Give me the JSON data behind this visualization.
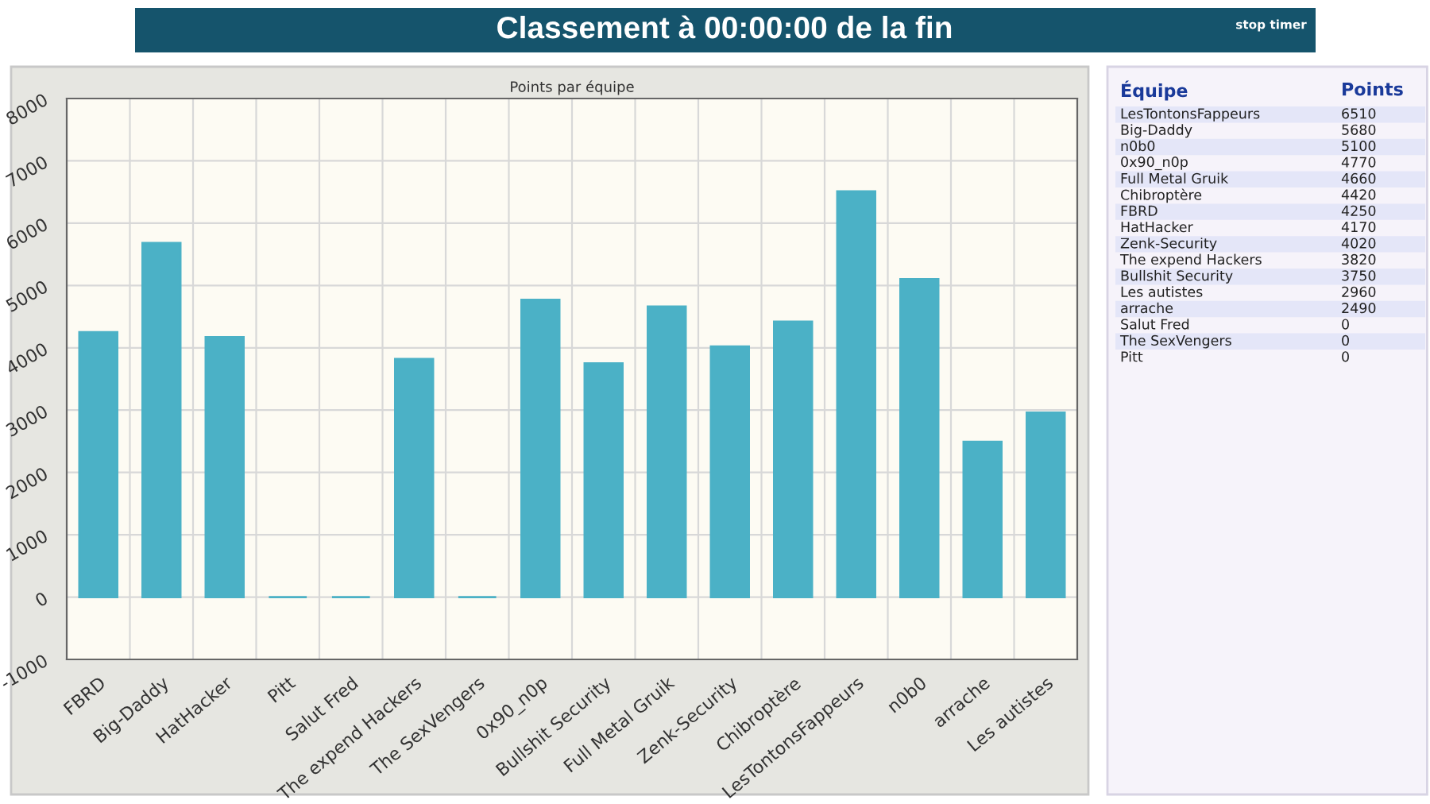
{
  "chart_data": {
    "type": "bar",
    "title": "Classement à 00:00:00 de la fin",
    "subtitle": "Points par équipe",
    "categories": [
      "FBRD",
      "Big-Daddy",
      "HatHacker",
      "Pitt",
      "Salut Fred",
      "The expend Hackers",
      "The SexVengers",
      "0x90_n0p",
      "Bullshit Security",
      "Full Metal Gruik",
      "Zenk-Security",
      "Chibroptère",
      "LesTontonsFappeurs",
      "n0b0",
      "arrache",
      "Les autistes"
    ],
    "values": [
      4250,
      5680,
      4170,
      0,
      0,
      3820,
      0,
      4770,
      3750,
      4660,
      4020,
      4420,
      6510,
      5100,
      2490,
      2960
    ],
    "color": "#4bb1c6",
    "ylim": [
      -1000,
      8000
    ],
    "yticks": [
      -1000,
      0,
      1000,
      2000,
      3000,
      4000,
      5000,
      6000,
      7000,
      8000
    ],
    "grid": true,
    "annotations": [
      "stop timer",
      "Équipe",
      "Points",
      "LesTontonsFappeurs",
      "6510",
      "Big-Daddy",
      "5680",
      "n0b0",
      "5100",
      "0x90_n0p",
      "4770",
      "Full Metal Gruik",
      "4660",
      "Chibroptère",
      "4420",
      "FBRD",
      "4250",
      "HatHacker",
      "4170",
      "Zenk-Security",
      "4020",
      "The expend Hackers",
      "3820",
      "Bullshit Security",
      "3750",
      "Les autistes",
      "2960",
      "arrache",
      "2490",
      "Salut Fred",
      "0",
      "The SexVengers",
      "0",
      "Pitt",
      "0"
    ]
  }
}
